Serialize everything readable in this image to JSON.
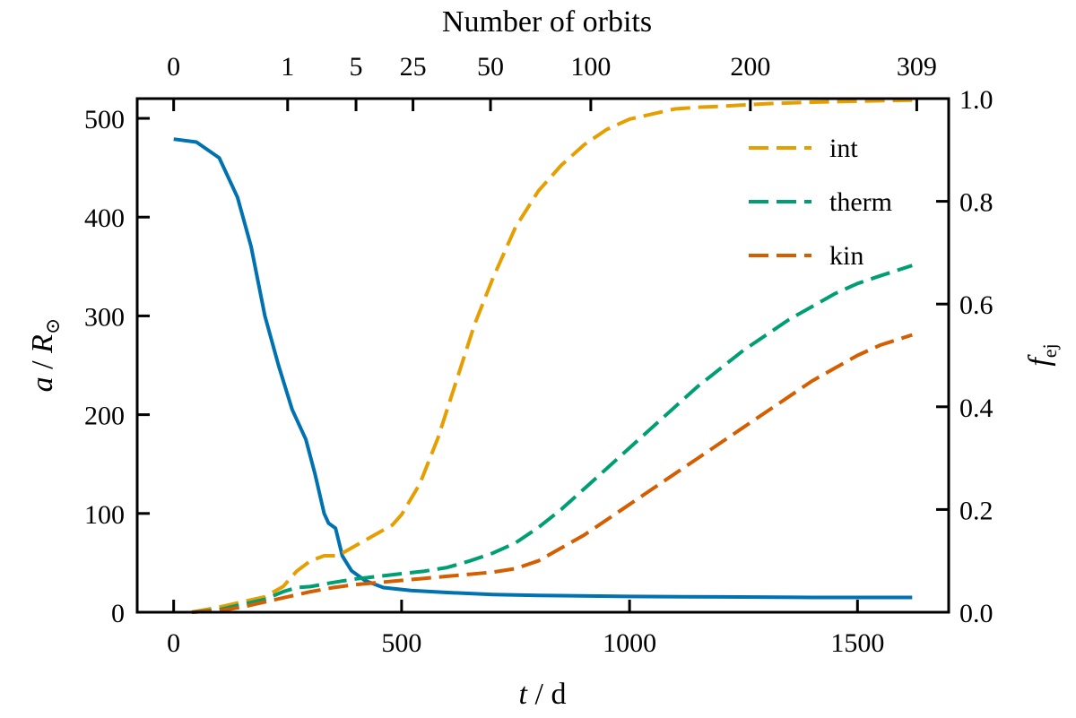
{
  "chart_data": {
    "type": "line",
    "x_axis": {
      "label_italic": "t",
      "label_rest": " / d",
      "range": [
        -80,
        1700
      ],
      "ticks": [
        0,
        500,
        1000,
        1500
      ],
      "tick_labels": [
        "0",
        "500",
        "1000",
        "1500"
      ]
    },
    "top_axis": {
      "label": "Number of orbits",
      "ticks_t": [
        0,
        250,
        400,
        525,
        695,
        915,
        1265,
        1630
      ],
      "tick_labels": [
        "0",
        "1",
        "5",
        "25",
        "50",
        "100",
        "200",
        "309"
      ]
    },
    "y_left": {
      "label_italic_a": "a",
      "label_mid": " / ",
      "label_italic_R": "R",
      "label_sub": "⊙",
      "range": [
        0,
        520
      ],
      "ticks": [
        0,
        100,
        200,
        300,
        400,
        500
      ],
      "tick_labels": [
        "0",
        "100",
        "200",
        "300",
        "400",
        "500"
      ]
    },
    "y_right": {
      "label_italic": "f",
      "label_sub": "ej",
      "range": [
        0,
        1.0
      ],
      "ticks": [
        0.0,
        0.2,
        0.4,
        0.6,
        0.8,
        1.0
      ],
      "tick_labels": [
        "0.0",
        "0.2",
        "0.4",
        "0.6",
        "0.8",
        "1.0"
      ]
    },
    "series": [
      {
        "axis": "left",
        "color": "#0072b2",
        "style": "solid",
        "x": [
          0,
          50,
          100,
          140,
          170,
          200,
          230,
          260,
          290,
          310,
          330,
          340,
          355,
          370,
          390,
          420,
          460,
          520,
          600,
          700,
          800,
          1000,
          1200,
          1400,
          1620
        ],
        "y": [
          479,
          476,
          460,
          420,
          370,
          300,
          250,
          205,
          175,
          140,
          100,
          90,
          85,
          57,
          42,
          32,
          25,
          22,
          20,
          18,
          17,
          16,
          15.5,
          15,
          15
        ]
      },
      {
        "name": "int",
        "axis": "right",
        "color": "#e69f00",
        "style": "dashed",
        "x": [
          40,
          100,
          150,
          200,
          240,
          270,
          300,
          330,
          360,
          400,
          440,
          480,
          500,
          540,
          580,
          620,
          660,
          700,
          750,
          800,
          850,
          900,
          950,
          1000,
          1050,
          1100,
          1150,
          1200,
          1300,
          1400,
          1500,
          1620
        ],
        "y": [
          0.0,
          0.01,
          0.02,
          0.03,
          0.05,
          0.08,
          0.1,
          0.11,
          0.11,
          0.13,
          0.15,
          0.17,
          0.19,
          0.25,
          0.34,
          0.45,
          0.56,
          0.65,
          0.75,
          0.82,
          0.87,
          0.91,
          0.94,
          0.96,
          0.97,
          0.98,
          0.983,
          0.985,
          0.99,
          0.993,
          0.995,
          0.997
        ]
      },
      {
        "name": "therm",
        "axis": "right",
        "color": "#009e73",
        "style": "dashed",
        "x": [
          40,
          100,
          150,
          200,
          240,
          270,
          300,
          350,
          400,
          450,
          500,
          550,
          600,
          650,
          700,
          750,
          800,
          850,
          900,
          950,
          1000,
          1050,
          1100,
          1150,
          1200,
          1250,
          1300,
          1350,
          1400,
          1450,
          1500,
          1550,
          1620
        ],
        "y": [
          0.0,
          0.005,
          0.015,
          0.025,
          0.04,
          0.048,
          0.05,
          0.058,
          0.065,
          0.07,
          0.075,
          0.08,
          0.087,
          0.1,
          0.115,
          0.135,
          0.165,
          0.2,
          0.24,
          0.28,
          0.32,
          0.36,
          0.4,
          0.44,
          0.475,
          0.51,
          0.54,
          0.57,
          0.595,
          0.62,
          0.64,
          0.655,
          0.675
        ]
      },
      {
        "name": "kin",
        "axis": "right",
        "color": "#d55e00",
        "style": "dashed",
        "x": [
          40,
          100,
          150,
          200,
          250,
          300,
          350,
          400,
          450,
          500,
          550,
          600,
          650,
          700,
          750,
          800,
          850,
          900,
          950,
          1000,
          1050,
          1100,
          1150,
          1200,
          1250,
          1300,
          1350,
          1400,
          1450,
          1500,
          1550,
          1620
        ],
        "y": [
          0.0,
          0.003,
          0.01,
          0.02,
          0.03,
          0.04,
          0.048,
          0.054,
          0.058,
          0.062,
          0.066,
          0.07,
          0.074,
          0.078,
          0.085,
          0.1,
          0.125,
          0.15,
          0.18,
          0.21,
          0.24,
          0.27,
          0.3,
          0.33,
          0.36,
          0.39,
          0.42,
          0.45,
          0.475,
          0.5,
          0.52,
          0.54
        ]
      }
    ],
    "legend": {
      "placement": "top-right",
      "entries": [
        "int",
        "therm",
        "kin"
      ]
    }
  }
}
